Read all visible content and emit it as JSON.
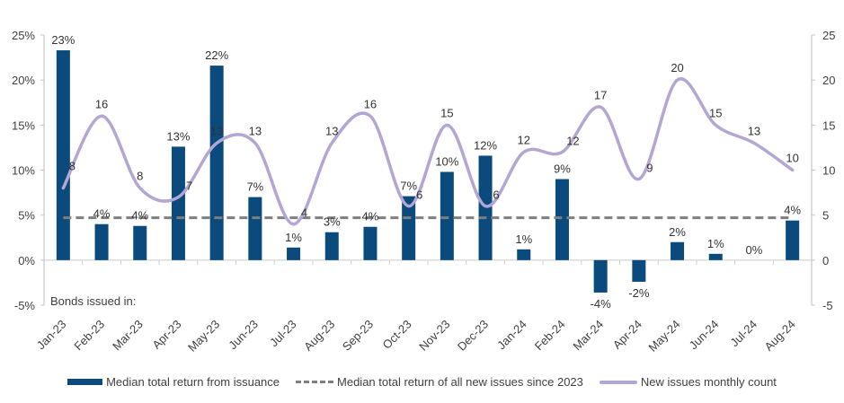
{
  "chart_data": {
    "type": "bar",
    "title": "",
    "annotation": "Bonds issued in:",
    "categories": [
      "Jan-23",
      "Feb-23",
      "Mar-23",
      "Apr-23",
      "May-23",
      "Jun-23",
      "Jul-23",
      "Aug-23",
      "Sep-23",
      "Oct-23",
      "Nov-23",
      "Dec-23",
      "Jan-24",
      "Feb-24",
      "Mar-24",
      "Apr-24",
      "May-24",
      "Jun-24",
      "Jul-24",
      "Aug-24"
    ],
    "series": [
      {
        "name": "Median total return from issuance",
        "type": "bar",
        "axis": "left",
        "color": "#0b4a7d",
        "values": [
          23.3,
          4.0,
          3.8,
          12.6,
          21.6,
          7.0,
          1.4,
          3.1,
          3.7,
          7.1,
          9.8,
          11.6,
          1.2,
          9.0,
          -3.6,
          -2.4,
          2.0,
          0.7,
          0.0,
          4.4
        ],
        "labels": [
          "23%",
          "4%",
          "4%",
          "13%",
          "22%",
          "7%",
          "1%",
          "3%",
          "4%",
          "7%",
          "10%",
          "12%",
          "1%",
          "9%",
          "-4%",
          "-2%",
          "2%",
          "1%",
          "0%",
          "4%"
        ]
      },
      {
        "name": "Median total return of all new issues since 2023",
        "type": "line-dashed",
        "axis": "left",
        "color": "#7f7f7f",
        "value": 4.7
      },
      {
        "name": "New issues monthly count",
        "type": "line-smooth",
        "axis": "right",
        "color": "#b3a6d3",
        "values": [
          8,
          16,
          8,
          7,
          13,
          13,
          4,
          13,
          16,
          6,
          15,
          6,
          12,
          12,
          17,
          9,
          20,
          15,
          13,
          10
        ]
      }
    ],
    "y_left": {
      "ylim": [
        -5,
        25
      ],
      "ticks": [
        -5,
        0,
        5,
        10,
        15,
        20,
        25
      ],
      "tick_labels": [
        "-5%",
        "0%",
        "5%",
        "10%",
        "15%",
        "20%",
        "25%"
      ]
    },
    "y_right": {
      "ylim": [
        -5,
        25
      ],
      "ticks": [
        -5,
        0,
        5,
        10,
        15,
        20,
        25
      ],
      "tick_labels": [
        "-5",
        "0",
        "5",
        "10",
        "15",
        "20",
        "25"
      ]
    },
    "xlabel": "",
    "ylabel": "",
    "grid": false,
    "legend_position": "bottom"
  },
  "legend": {
    "bar_label": "Median total return from issuance",
    "dash_label": "Median total return of all new issues since 2023",
    "line_label": "New issues monthly count"
  }
}
